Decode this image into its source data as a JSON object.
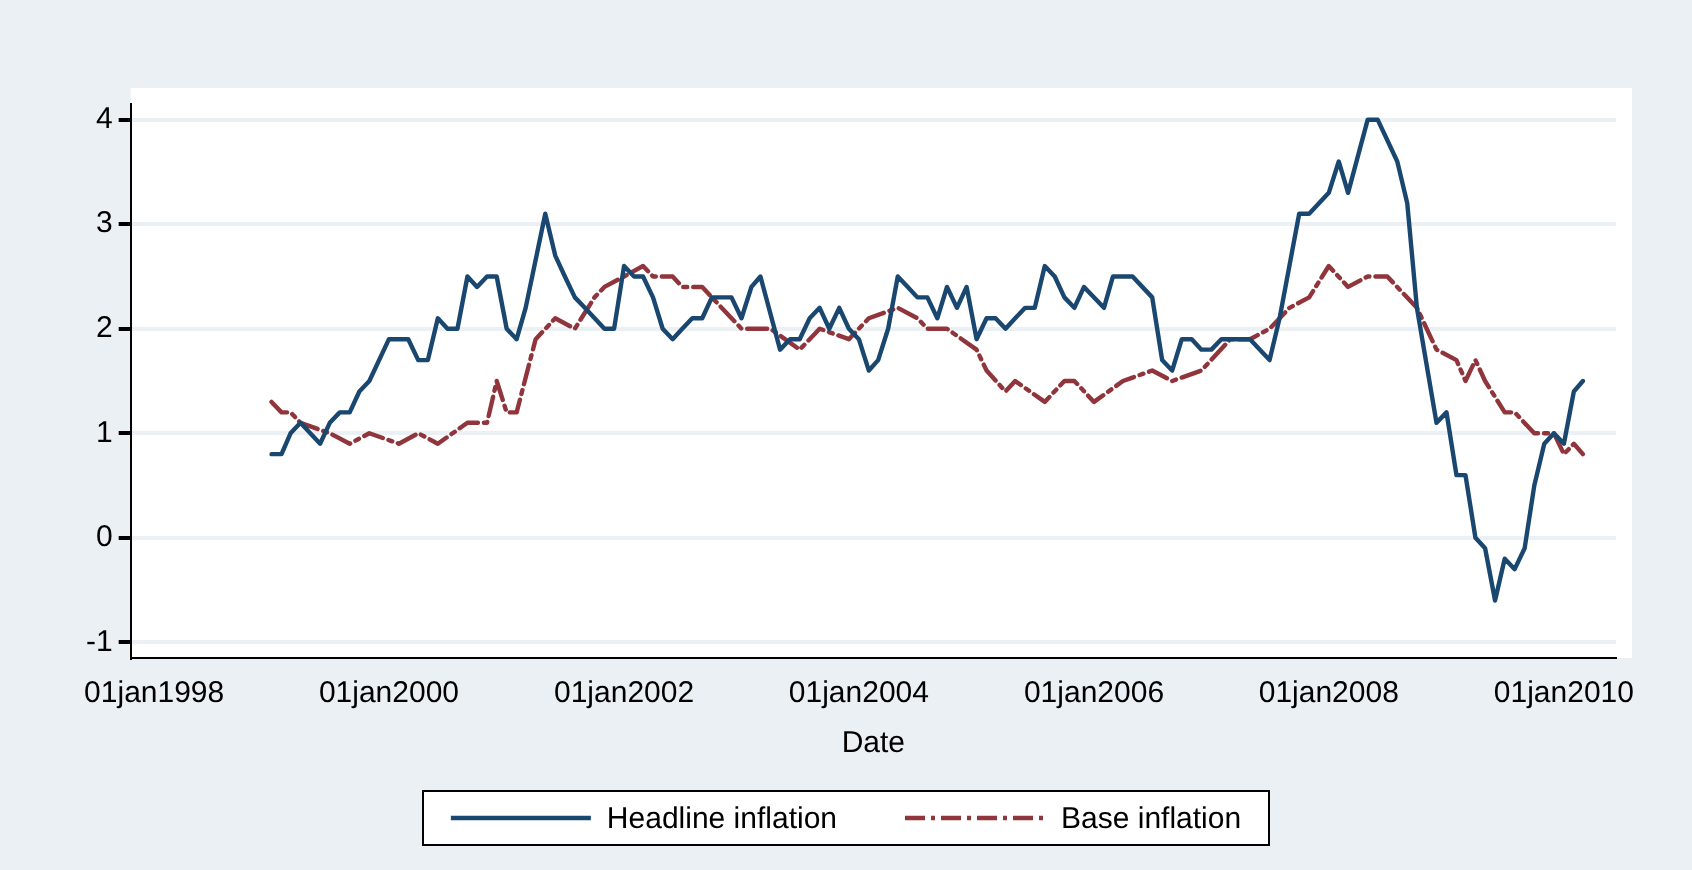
{
  "chart_data": {
    "type": "line",
    "xlabel": "Date",
    "xlim": [
      "1997-10-20",
      "2010-06-12"
    ],
    "xticks": [
      {
        "value": "1998-01-01",
        "label": "01jan1998"
      },
      {
        "value": "2000-01-01",
        "label": "01jan2000"
      },
      {
        "value": "2002-01-01",
        "label": "01jan2002"
      },
      {
        "value": "2004-01-01",
        "label": "01jan2004"
      },
      {
        "value": "2006-01-01",
        "label": "01jan2006"
      },
      {
        "value": "2008-01-01",
        "label": "01jan2008"
      },
      {
        "value": "2010-01-01",
        "label": "01jan2010"
      }
    ],
    "ylim": [
      -1.15,
      4.15
    ],
    "yticks": [
      -1,
      0,
      1,
      2,
      3,
      4
    ],
    "grid": "y",
    "legend": "bottom",
    "marker": "none",
    "series": [
      {
        "name": "Headline inflation",
        "color": "#1a476f",
        "line_style": "solid",
        "x": [
          "1999-01",
          "1999-02",
          "1999-03",
          "1999-04",
          "1999-06",
          "1999-07",
          "1999-08",
          "1999-09",
          "1999-10",
          "1999-11",
          "2000-01",
          "2000-03",
          "2000-04",
          "2000-05",
          "2000-06",
          "2000-07",
          "2000-08",
          "2000-09",
          "2000-10",
          "2000-11",
          "2000-12",
          "2001-01",
          "2001-02",
          "2001-03",
          "2001-05",
          "2001-06",
          "2001-07",
          "2001-08",
          "2001-09",
          "2001-11",
          "2001-12",
          "2002-01",
          "2002-02",
          "2002-03",
          "2002-04",
          "2002-05",
          "2002-06",
          "2002-07",
          "2002-08",
          "2002-09",
          "2002-10",
          "2002-12",
          "2003-01",
          "2003-02",
          "2003-03",
          "2003-05",
          "2003-06",
          "2003-07",
          "2003-08",
          "2003-09",
          "2003-10",
          "2003-11",
          "2003-12",
          "2004-01",
          "2004-02",
          "2004-03",
          "2004-04",
          "2004-05",
          "2004-06",
          "2004-07",
          "2004-08",
          "2004-09",
          "2004-10",
          "2004-11",
          "2004-12",
          "2005-01",
          "2005-02",
          "2005-03",
          "2005-04",
          "2005-05",
          "2005-06",
          "2005-07",
          "2005-08",
          "2005-09",
          "2005-10",
          "2005-11",
          "2005-12",
          "2006-02",
          "2006-03",
          "2006-05",
          "2006-07",
          "2006-08",
          "2006-09",
          "2006-10",
          "2006-11",
          "2006-12",
          "2007-01",
          "2007-02",
          "2007-05",
          "2007-07",
          "2007-08",
          "2007-10",
          "2007-11",
          "2008-01",
          "2008-02",
          "2008-03",
          "2008-05",
          "2008-06",
          "2008-08",
          "2008-09",
          "2008-10",
          "2008-12",
          "2009-01",
          "2009-02",
          "2009-03",
          "2009-04",
          "2009-05",
          "2009-06",
          "2009-07",
          "2009-08",
          "2009-09",
          "2009-10",
          "2009-11",
          "2009-12",
          "2010-01",
          "2010-02",
          "2010-03"
        ],
        "values": [
          0.8,
          0.8,
          1.0,
          1.1,
          0.9,
          1.1,
          1.2,
          1.2,
          1.4,
          1.5,
          1.9,
          1.9,
          1.7,
          1.7,
          2.1,
          2.0,
          2.0,
          2.5,
          2.4,
          2.5,
          2.5,
          2.0,
          1.9,
          2.2,
          3.1,
          2.7,
          2.5,
          2.3,
          2.2,
          2.0,
          2.0,
          2.6,
          2.5,
          2.5,
          2.3,
          2.0,
          1.9,
          2.0,
          2.1,
          2.1,
          2.3,
          2.3,
          2.1,
          2.4,
          2.5,
          1.8,
          1.9,
          1.9,
          2.1,
          2.2,
          2.0,
          2.2,
          2.0,
          1.9,
          1.6,
          1.7,
          2.0,
          2.5,
          2.4,
          2.3,
          2.3,
          2.1,
          2.4,
          2.2,
          2.4,
          1.9,
          2.1,
          2.1,
          2.0,
          2.1,
          2.2,
          2.2,
          2.6,
          2.5,
          2.3,
          2.2,
          2.4,
          2.2,
          2.5,
          2.5,
          2.3,
          1.7,
          1.6,
          1.9,
          1.9,
          1.8,
          1.8,
          1.9,
          1.9,
          1.7,
          2.1,
          3.1,
          3.1,
          3.3,
          3.6,
          3.3,
          4.0,
          4.0,
          3.6,
          3.2,
          2.2,
          1.1,
          1.2,
          0.6,
          0.6,
          0.0,
          -0.1,
          -0.6,
          -0.2,
          -0.3,
          -0.1,
          0.5,
          0.9,
          1.0,
          0.9,
          1.4,
          1.5
        ]
      },
      {
        "name": "Base inflation",
        "color": "#90353b",
        "line_style": "dashed",
        "x": [
          "1999-01",
          "1999-02",
          "1999-03",
          "1999-04",
          "1999-07",
          "1999-09",
          "1999-11",
          "2000-02",
          "2000-04",
          "2000-06",
          "2000-09",
          "2000-11",
          "2000-12",
          "2001-01",
          "2001-02",
          "2001-04",
          "2001-06",
          "2001-08",
          "2001-10",
          "2001-11",
          "2002-01",
          "2002-03",
          "2002-04",
          "2002-06",
          "2002-07",
          "2002-09",
          "2002-10",
          "2003-01",
          "2003-02",
          "2003-04",
          "2003-07",
          "2003-09",
          "2003-12",
          "2004-02",
          "2004-05",
          "2004-07",
          "2004-08",
          "2004-10",
          "2005-01",
          "2005-02",
          "2005-04",
          "2005-05",
          "2005-08",
          "2005-10",
          "2005-11",
          "2006-01",
          "2006-04",
          "2006-07",
          "2006-09",
          "2006-12",
          "2007-03",
          "2007-05",
          "2007-07",
          "2007-09",
          "2007-11",
          "2008-01",
          "2008-03",
          "2008-05",
          "2008-07",
          "2008-10",
          "2008-12",
          "2009-02",
          "2009-03",
          "2009-04",
          "2009-05",
          "2009-07",
          "2009-08",
          "2009-10",
          "2009-12",
          "2010-01",
          "2010-02",
          "2010-03"
        ],
        "values": [
          1.3,
          1.2,
          1.2,
          1.1,
          1.0,
          0.9,
          1.0,
          0.9,
          1.0,
          0.9,
          1.1,
          1.1,
          1.5,
          1.2,
          1.2,
          1.9,
          2.1,
          2.0,
          2.3,
          2.4,
          2.5,
          2.6,
          2.5,
          2.5,
          2.4,
          2.4,
          2.3,
          2.0,
          2.0,
          2.0,
          1.8,
          2.0,
          1.9,
          2.1,
          2.2,
          2.1,
          2.0,
          2.0,
          1.8,
          1.6,
          1.4,
          1.5,
          1.3,
          1.5,
          1.5,
          1.3,
          1.5,
          1.6,
          1.5,
          1.6,
          1.9,
          1.9,
          2.0,
          2.2,
          2.3,
          2.6,
          2.4,
          2.5,
          2.5,
          2.2,
          1.8,
          1.7,
          1.5,
          1.7,
          1.5,
          1.2,
          1.2,
          1.0,
          1.0,
          0.8,
          0.9,
          0.8
        ]
      }
    ]
  }
}
